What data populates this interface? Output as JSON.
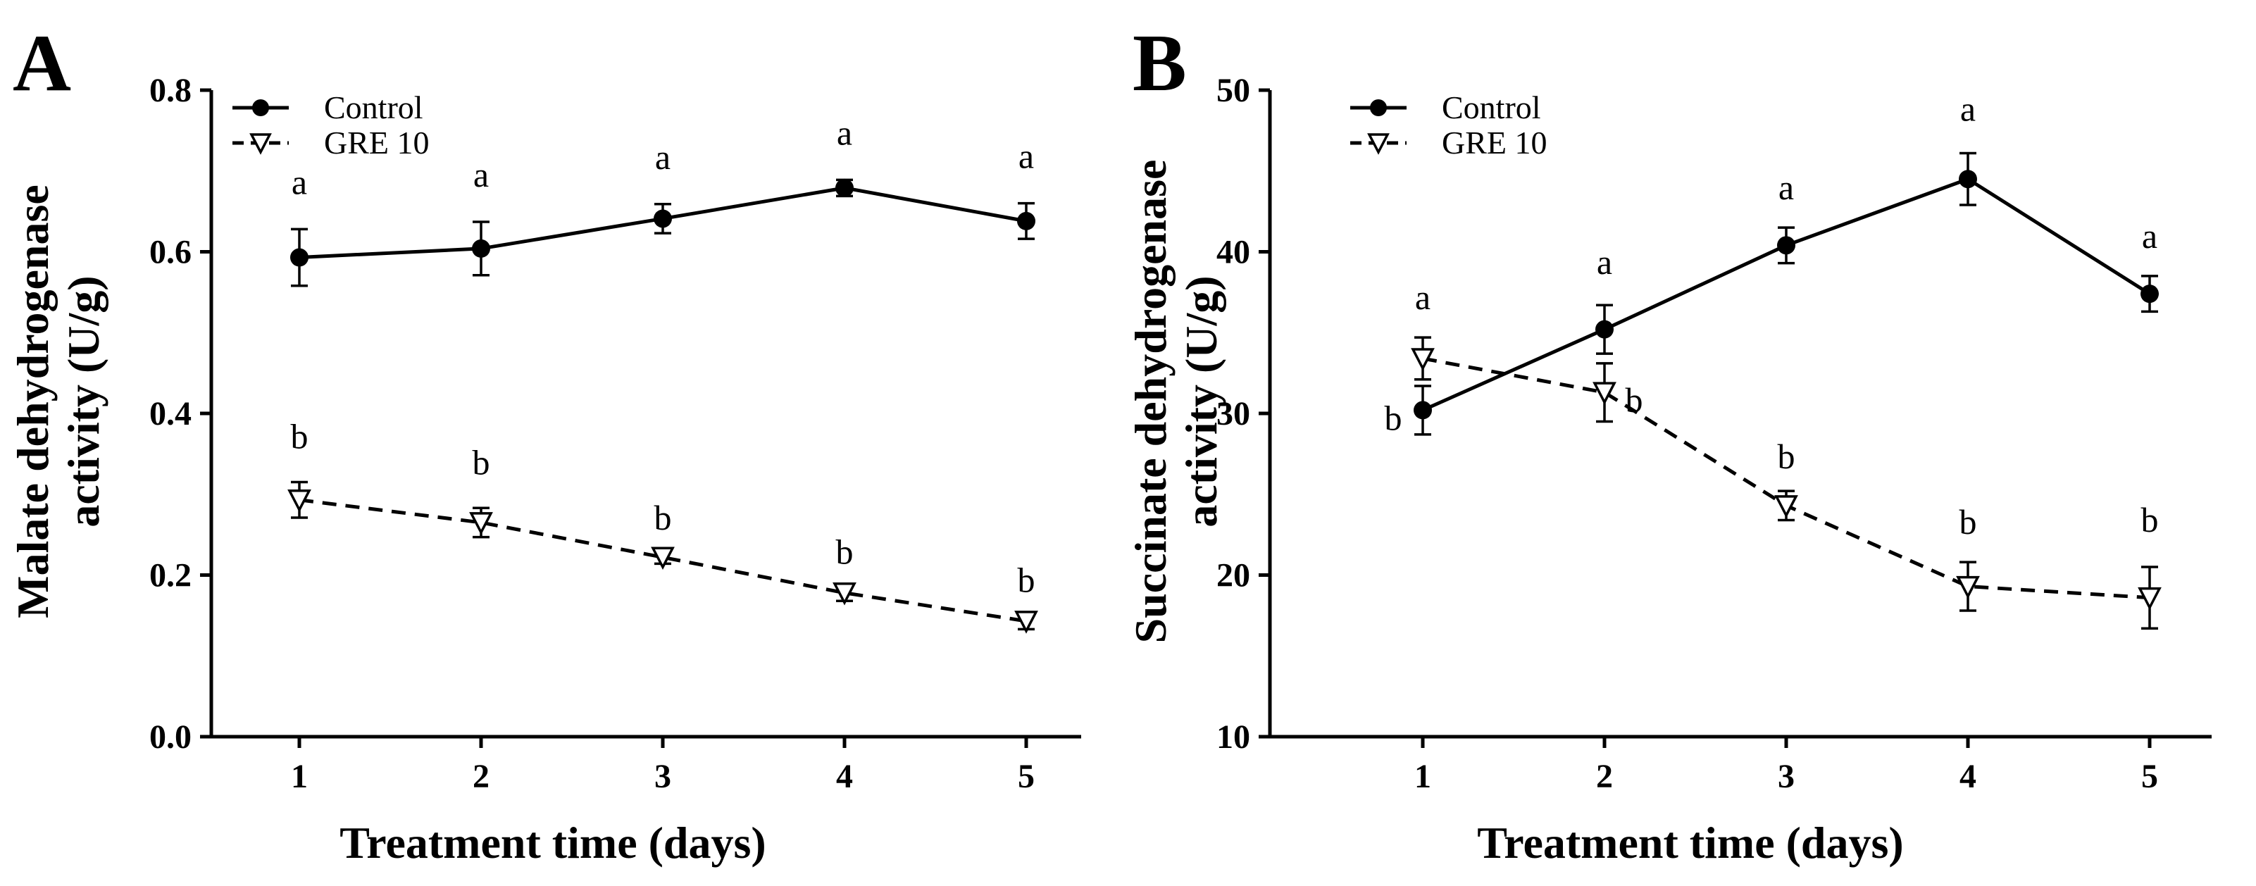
{
  "chart_data": [
    {
      "panel": "A",
      "type": "line",
      "xlabel": "Treatment time (days)",
      "ylabel": [
        "Malate dehydrogenase",
        "activity (U/g)"
      ],
      "x": [
        1,
        2,
        3,
        4,
        5
      ],
      "xticks": [
        "1",
        "2",
        "3",
        "4",
        "5"
      ],
      "ylim": [
        0,
        0.8
      ],
      "yticks": [
        "0.0",
        "0.2",
        "0.4",
        "0.6",
        "0.8"
      ],
      "legend_position": "top-left",
      "series": [
        {
          "name": "Control",
          "marker": "filled-circle",
          "line": "solid",
          "values": [
            0.593,
            0.604,
            0.641,
            0.679,
            0.638
          ],
          "errors": [
            0.035,
            0.033,
            0.018,
            0.01,
            0.022
          ],
          "labels": [
            "a",
            "a",
            "a",
            "a",
            "a"
          ],
          "color": "#000000"
        },
        {
          "name": "GRE 10",
          "marker": "open-triangle-down",
          "line": "dashed",
          "values": [
            0.293,
            0.265,
            0.222,
            0.178,
            0.143
          ],
          "errors": [
            0.022,
            0.018,
            0.008,
            0.01,
            0.01
          ],
          "labels": [
            "b",
            "b",
            "b",
            "b",
            "b"
          ],
          "color": "#000000"
        }
      ]
    },
    {
      "panel": "B",
      "type": "line",
      "xlabel": "Treatment time (days)",
      "ylabel": [
        "Succinate dehydrogenase",
        "activity (U/g)"
      ],
      "x": [
        1,
        2,
        3,
        4,
        5
      ],
      "xticks": [
        "1",
        "2",
        "3",
        "4",
        "5"
      ],
      "ylim": [
        10,
        50
      ],
      "yticks": [
        "10",
        "20",
        "30",
        "40",
        "50"
      ],
      "legend_position": "top-left",
      "series": [
        {
          "name": "Control",
          "marker": "filled-circle",
          "line": "solid",
          "values": [
            30.2,
            35.2,
            40.4,
            44.5,
            37.4
          ],
          "errors": [
            1.5,
            1.5,
            1.1,
            1.6,
            1.1
          ],
          "labels": [
            "b",
            "a",
            "a",
            "a",
            "a"
          ],
          "color": "#000000"
        },
        {
          "name": "GRE 10",
          "marker": "open-triangle-down",
          "line": "dashed",
          "values": [
            33.4,
            31.3,
            24.3,
            19.3,
            18.6
          ],
          "errors": [
            1.3,
            1.8,
            0.9,
            1.5,
            1.9
          ],
          "labels": [
            "a",
            "b",
            "b",
            "b",
            "b"
          ],
          "color": "#000000"
        }
      ]
    }
  ]
}
